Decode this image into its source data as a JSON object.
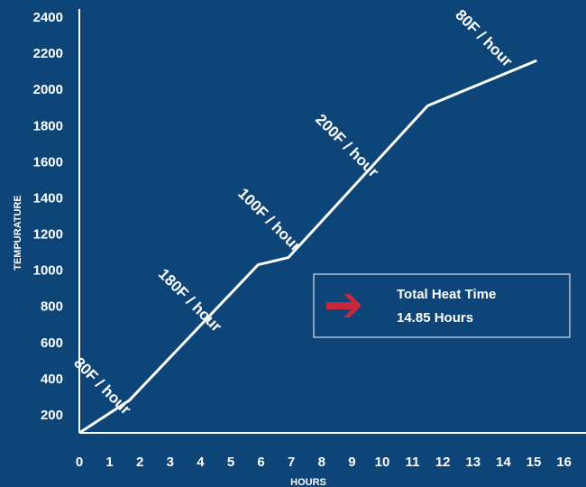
{
  "chart_data": {
    "type": "line",
    "xlabel": "HOURS",
    "ylabel": "TEMPURATURE",
    "xlim": [
      0,
      16
    ],
    "ylim": [
      100,
      2400
    ],
    "x_ticks": [
      "0",
      "1",
      "2",
      "3",
      "4",
      "5",
      "6",
      "7",
      "8",
      "9",
      "10",
      "11",
      "12",
      "13",
      "14",
      "15",
      "16"
    ],
    "y_ticks": [
      "200",
      "400",
      "600",
      "800",
      "1000",
      "1200",
      "1400",
      "1600",
      "1800",
      "2000",
      "2200",
      "2400"
    ],
    "grid": false,
    "series": [
      {
        "x": [
          0,
          1.65,
          5.9,
          6.9,
          11.5,
          15.1
        ],
        "y": [
          100,
          280,
          1030,
          1070,
          1910,
          2160
        ]
      }
    ],
    "segment_labels": [
      "80F / hour",
      "180F / hour",
      "100F / hour",
      "200F / hour",
      "80F / hour"
    ],
    "info_box": {
      "title": "Total Heat Time",
      "value": "14.85 Hours"
    },
    "colors": {
      "background": "#0d4579",
      "line": "#ffffff",
      "arrow": "#c8283c"
    }
  }
}
